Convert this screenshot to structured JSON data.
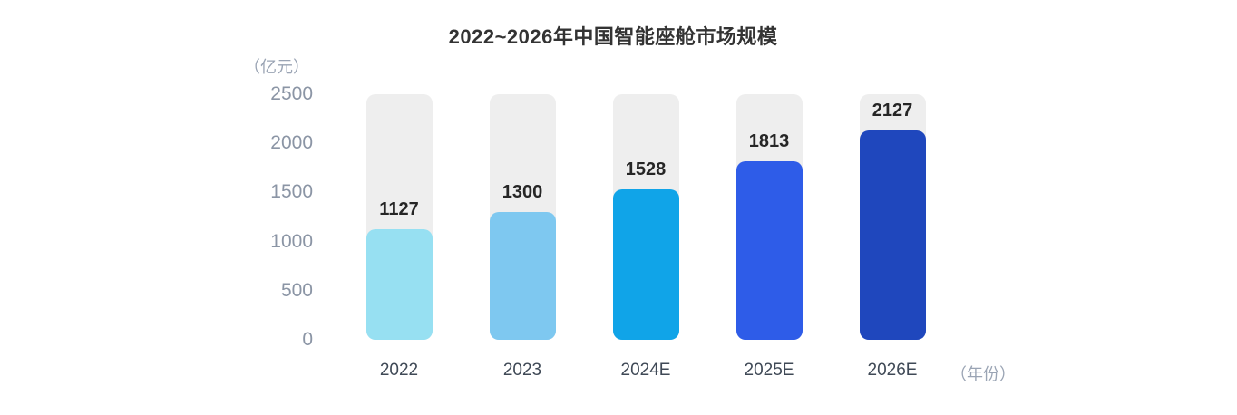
{
  "page": {
    "background_color": "#ffffff"
  },
  "chart_data": {
    "type": "bar",
    "title": "2022~2026年中国智能座舱市场规模",
    "categories": [
      "2022",
      "2023",
      "2024E",
      "2025E",
      "2026E"
    ],
    "values": [
      1127,
      1300,
      1528,
      1813,
      2127
    ],
    "value_labels": [
      "1127",
      "1300",
      "1528",
      "1813",
      "2127"
    ],
    "xlabel": "（年份）",
    "ylabel": "（亿元）",
    "ylim": [
      0,
      2500
    ],
    "yticks": [
      0,
      500,
      1000,
      1500,
      2000,
      2500
    ],
    "grid": false,
    "legend": null,
    "bar_colors": [
      "#97e0f2",
      "#7ec8f0",
      "#10a4e8",
      "#2e5ce8",
      "#1f47bd"
    ],
    "track_color": "#eeeeee",
    "title_color": "#333333",
    "value_label_color": "#262626",
    "tick_label_color": "#8b95a5",
    "category_label_color": "#3f4956",
    "unit_label_color": "#9aa4b4"
  }
}
